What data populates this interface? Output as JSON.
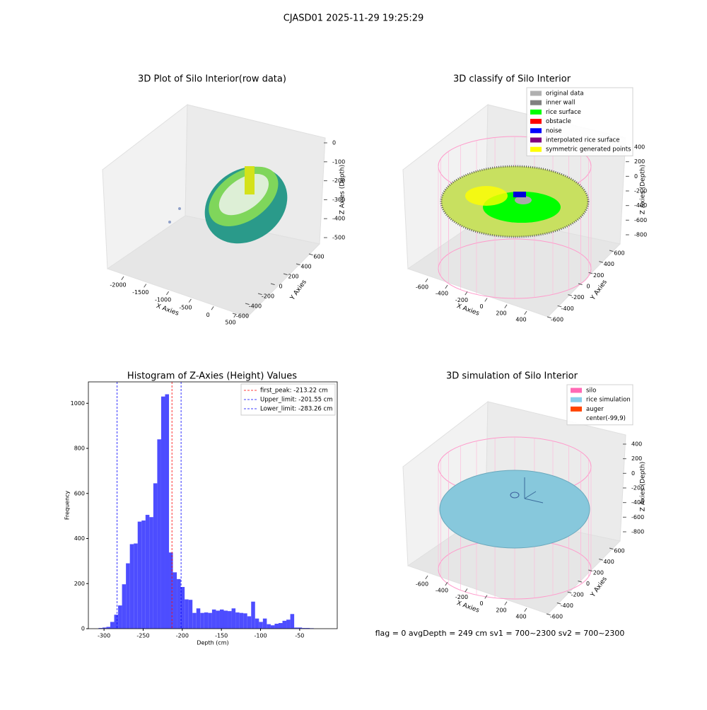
{
  "title": "CJASD01 2025-11-29 19:25:29",
  "annotation": "flag = 0     avgDepth = 249 cm  sv1 = 700~2300  sv2 = 700~2300",
  "chart_data": [
    {
      "type": "scatter3d",
      "title": "3D Plot of Silo Interior(row data)",
      "xlabel": "X Axies",
      "ylabel": "Y Axies",
      "zlabel": "Z Axies (Depth)",
      "xticks": [
        -2000,
        -1500,
        -1000,
        -500,
        0,
        500
      ],
      "yticks": [
        -600,
        -400,
        -200,
        0,
        200,
        400,
        600
      ],
      "zticks": [
        -500,
        -400,
        -300,
        -200,
        -100,
        0
      ]
    },
    {
      "type": "scatter3d",
      "title": "3D classify of Silo Interior",
      "xlabel": "X Axies",
      "ylabel": "Y Axies",
      "zlabel": "Z Axies (Depth)",
      "xticks": [
        -600,
        -400,
        -200,
        0,
        200,
        400
      ],
      "yticks": [
        -600,
        -400,
        -200,
        0,
        200,
        400,
        600
      ],
      "zticks": [
        -800,
        -600,
        -400,
        -200,
        0,
        200,
        400
      ],
      "legend": [
        {
          "name": "original data",
          "color": "#b0b0b0"
        },
        {
          "name": "inner wall",
          "color": "#808080"
        },
        {
          "name": "rice surface",
          "color": "#00ff00"
        },
        {
          "name": "obstacle",
          "color": "#ff0000"
        },
        {
          "name": "noise",
          "color": "#0000ff"
        },
        {
          "name": "interpolated rice surface",
          "color": "#800080"
        },
        {
          "name": "symmetric generated points",
          "color": "#ffff00"
        }
      ]
    },
    {
      "type": "histogram",
      "title": "Histogram of Z-Axies (Height) Values",
      "xlabel": "Depth (cm)",
      "ylabel": "Frequency",
      "color": "#4d4dff",
      "bins": [
        -307,
        -302,
        -297,
        -292,
        -287,
        -282,
        -277,
        -272,
        -267,
        -262,
        -257,
        -252,
        -247,
        -242,
        -237,
        -232,
        -227,
        -222,
        -217,
        -212,
        -207,
        -202,
        -197,
        -192,
        -187,
        -182,
        -177,
        -172,
        -167,
        -162,
        -157,
        -152,
        -147,
        -142,
        -137,
        -132,
        -127,
        -122,
        -117,
        -112,
        -107,
        -102,
        -97,
        -92,
        -87,
        -82,
        -77,
        -72,
        -67,
        -62,
        -57,
        -52,
        -47,
        -42,
        -37,
        -32
      ],
      "counts": [
        3,
        5,
        8,
        30,
        62,
        103,
        197,
        290,
        375,
        378,
        475,
        480,
        505,
        495,
        645,
        840,
        1030,
        1040,
        338,
        250,
        220,
        185,
        130,
        128,
        70,
        90,
        70,
        72,
        70,
        85,
        80,
        85,
        80,
        78,
        90,
        72,
        70,
        68,
        55,
        120,
        45,
        30,
        45,
        20,
        15,
        22,
        25,
        35,
        40,
        65,
        5,
        5,
        3,
        3,
        2
      ],
      "xlim": [
        -320,
        -2
      ],
      "ylim": [
        0,
        1095
      ],
      "xticks": [
        -300,
        -250,
        -200,
        -150,
        -100,
        -50
      ],
      "yticks": [
        0,
        200,
        400,
        600,
        800,
        1000
      ],
      "vlines": [
        {
          "label": "first_peak: -213.22 cm",
          "value": -213.22,
          "color": "#ff0000"
        },
        {
          "label": "Upper_limit: -201.55 cm",
          "value": -201.55,
          "color": "#0000ff"
        },
        {
          "label": "Lower_limit: -283.26 cm",
          "value": -283.26,
          "color": "#0000ff"
        }
      ],
      "legend_position": "upper right"
    },
    {
      "type": "scatter3d",
      "title": "3D simulation of Silo Interior",
      "xlabel": "X Axies",
      "ylabel": "Y Axies",
      "zlabel": "Z Axies (Depth)",
      "xticks": [
        -600,
        -400,
        -200,
        0,
        200,
        400
      ],
      "yticks": [
        -600,
        -400,
        -200,
        0,
        200,
        400,
        600
      ],
      "zticks": [
        -800,
        -600,
        -400,
        -200,
        0,
        200,
        400
      ],
      "legend": [
        {
          "name": "silo",
          "color": "#ff69b4"
        },
        {
          "name": "rice simulation",
          "color": "#87ceeb"
        },
        {
          "name": "auger",
          "color": "#ff4500"
        },
        {
          "name": "center(-99,9)",
          "color": "#ffffff"
        }
      ]
    }
  ]
}
